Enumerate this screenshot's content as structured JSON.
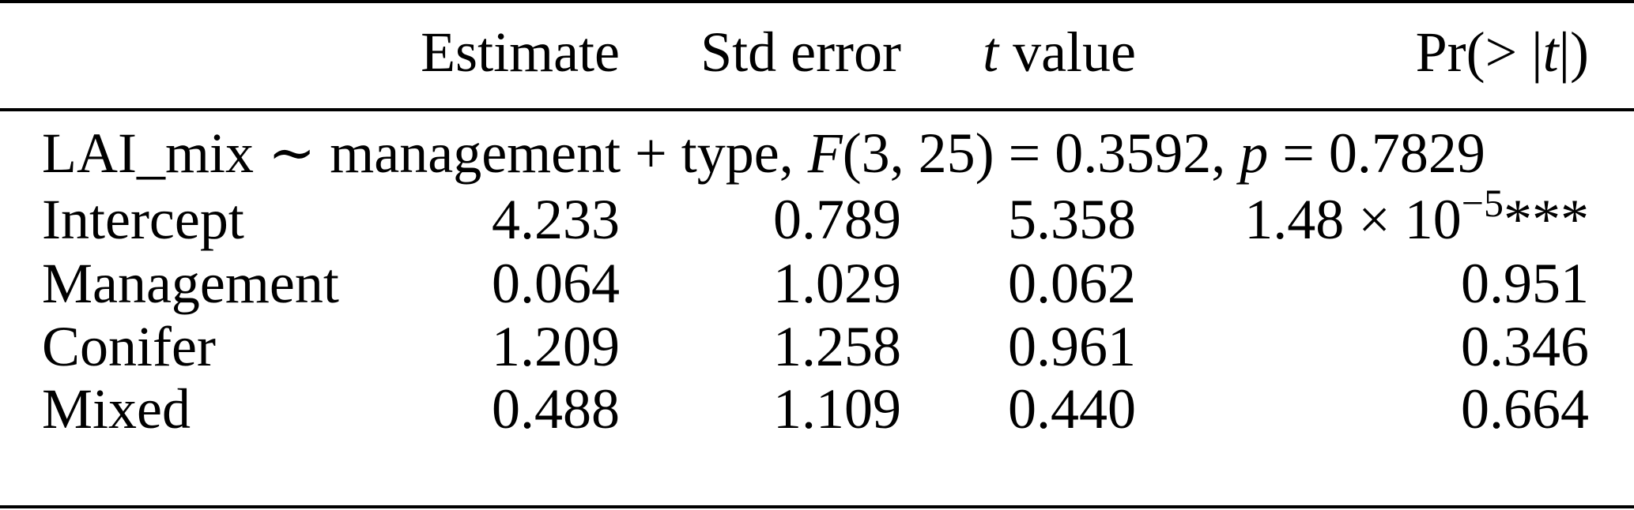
{
  "header": {
    "estimate": "Estimate",
    "std_error": "Std error",
    "t_italic": "t",
    "t_value": " value",
    "pr_prefix": "Pr(> |",
    "pr_t": "t",
    "pr_suffix": "|)"
  },
  "model_line": {
    "formula": "LAI_mix ∼ management + type, ",
    "f_label": "F",
    "f_args": "(3, 25) = 0.3592, ",
    "p_label": "p",
    "p_value": " = 0.7829"
  },
  "rows": [
    {
      "term": "Intercept",
      "estimate": "4.233",
      "std_error": "0.789",
      "t_value": "5.358",
      "p_mantissa": "1.48 × 10",
      "p_exponent": "−5",
      "p_stars": "***"
    },
    {
      "term": "Management",
      "estimate": "0.064",
      "std_error": "1.029",
      "t_value": "0.062",
      "p_value": "0.951"
    },
    {
      "term": "Conifer",
      "estimate": "1.209",
      "std_error": "1.258",
      "t_value": "0.961",
      "p_value": "0.346"
    },
    {
      "term": "Mixed",
      "estimate": "0.488",
      "std_error": "1.109",
      "t_value": "0.440",
      "p_value": "0.664"
    }
  ]
}
